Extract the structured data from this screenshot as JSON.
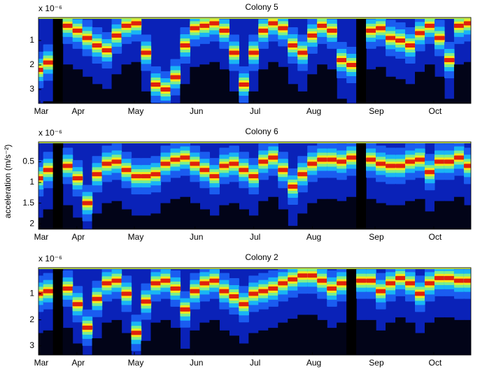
{
  "chart_data": [
    {
      "type": "heatmap",
      "title": "Colony 5",
      "exponent_label": "x 10⁻⁶",
      "invert_y": true,
      "x": [
        0,
        5,
        10,
        15,
        20,
        25,
        30,
        35,
        40,
        45,
        50,
        55,
        60,
        65,
        70,
        75,
        80,
        85,
        90,
        95,
        100,
        105,
        110,
        115,
        120,
        125,
        130,
        135,
        140,
        145,
        150,
        155,
        160,
        165,
        170,
        175,
        180,
        185,
        190,
        195,
        200,
        205,
        210,
        215,
        220
      ],
      "values": [
        2.2,
        1.9,
        null,
        0.4,
        0.6,
        0.9,
        1.2,
        1.4,
        0.8,
        0.4,
        0.3,
        1.5,
        2.8,
        3.0,
        2.5,
        1.2,
        0.5,
        0.4,
        0.3,
        0.6,
        1.5,
        2.8,
        1.5,
        0.6,
        0.3,
        0.5,
        1.2,
        1.5,
        0.8,
        0.4,
        0.6,
        1.8,
        2.0,
        null,
        0.6,
        0.5,
        0.9,
        1.0,
        1.2,
        0.7,
        0.4,
        0.9,
        1.8,
        0.4,
        0.3
      ],
      "xlim": [
        0,
        221
      ],
      "xticks": [
        {
          "value": 0.7,
          "label": "Mar"
        },
        {
          "value": 19.6,
          "label": "Apr"
        },
        {
          "value": 49,
          "label": "May"
        },
        {
          "value": 80,
          "label": "Jun"
        },
        {
          "value": 110,
          "label": "Jul"
        },
        {
          "value": 140,
          "label": "Aug"
        },
        {
          "value": 172,
          "label": "Sep"
        },
        {
          "value": 202,
          "label": "Oct"
        }
      ],
      "ylim": [
        0.06,
        3.57
      ],
      "yticks": [
        1,
        2,
        3
      ]
    },
    {
      "type": "heatmap",
      "title": "Colony 6",
      "exponent_label": "x 10⁻⁶",
      "ylabel": "acceleration (m/s⁻²)",
      "invert_y": true,
      "x": [
        0,
        5,
        10,
        15,
        20,
        25,
        30,
        35,
        40,
        45,
        50,
        55,
        60,
        65,
        70,
        75,
        80,
        85,
        90,
        95,
        100,
        105,
        110,
        115,
        120,
        125,
        130,
        135,
        140,
        145,
        150,
        155,
        160,
        165,
        170,
        175,
        180,
        185,
        190,
        195,
        200,
        205,
        210,
        215,
        220
      ],
      "values": [
        0.9,
        0.7,
        null,
        0.6,
        0.9,
        1.5,
        0.8,
        0.55,
        0.5,
        0.7,
        0.85,
        0.85,
        0.8,
        0.55,
        0.45,
        0.4,
        0.55,
        0.7,
        0.85,
        0.6,
        0.55,
        0.7,
        0.85,
        0.5,
        0.4,
        0.7,
        1.1,
        0.8,
        0.55,
        0.45,
        0.45,
        0.5,
        0.4,
        null,
        0.45,
        0.55,
        0.6,
        0.6,
        0.5,
        0.45,
        0.75,
        0.5,
        0.5,
        0.4,
        0.6
      ],
      "xlim": [
        0,
        221
      ],
      "xticks": [
        {
          "value": 0.7,
          "label": "Mar"
        },
        {
          "value": 19.6,
          "label": "Apr"
        },
        {
          "value": 49,
          "label": "May"
        },
        {
          "value": 80,
          "label": "Jun"
        },
        {
          "value": 110,
          "label": "Jul"
        },
        {
          "value": 140,
          "label": "Aug"
        },
        {
          "value": 172,
          "label": "Sep"
        },
        {
          "value": 202,
          "label": "Oct"
        }
      ],
      "ylim": [
        0.02,
        2.13
      ],
      "yticks": [
        0.5,
        1,
        1.5,
        2
      ]
    },
    {
      "type": "heatmap",
      "title": "Colony 2",
      "exponent_label": "x 10⁻⁶",
      "invert_y": true,
      "x": [
        0,
        5,
        10,
        15,
        20,
        25,
        30,
        35,
        40,
        45,
        50,
        55,
        60,
        65,
        70,
        75,
        80,
        85,
        90,
        95,
        100,
        105,
        110,
        115,
        120,
        125,
        130,
        135,
        140,
        145,
        150,
        155,
        160,
        165,
        170,
        175,
        180,
        185,
        190,
        195,
        200,
        205,
        210,
        215,
        220
      ],
      "values": [
        1.0,
        0.9,
        null,
        0.8,
        1.4,
        2.3,
        1.2,
        0.6,
        0.5,
        1.0,
        2.5,
        1.3,
        0.6,
        0.5,
        0.8,
        1.6,
        0.9,
        0.6,
        0.5,
        0.9,
        1.1,
        1.4,
        1.0,
        0.9,
        0.8,
        0.6,
        0.45,
        0.3,
        0.3,
        0.5,
        0.8,
        0.6,
        null,
        0.5,
        0.5,
        0.9,
        0.6,
        0.4,
        0.6,
        1.0,
        0.6,
        0.4,
        0.4,
        0.5,
        0.5
      ],
      "xlim": [
        0,
        221
      ],
      "xticks": [
        {
          "value": 0.7,
          "label": "Mar"
        },
        {
          "value": 19.6,
          "label": "Apr"
        },
        {
          "value": 49,
          "label": "May"
        },
        {
          "value": 80,
          "label": "Jun"
        },
        {
          "value": 110,
          "label": "Jul"
        },
        {
          "value": 140,
          "label": "Aug"
        },
        {
          "value": 172,
          "label": "Sep"
        },
        {
          "value": 202,
          "label": "Oct"
        }
      ],
      "ylim": [
        0,
        3.35
      ],
      "yticks": [
        1,
        2,
        3
      ]
    }
  ]
}
